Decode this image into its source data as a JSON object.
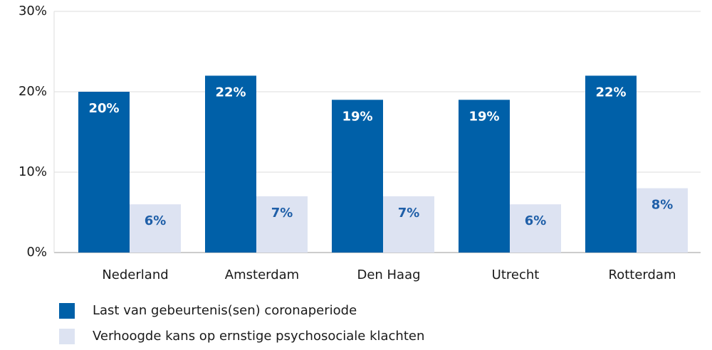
{
  "chart_data": {
    "type": "bar",
    "categories": [
      "Nederland",
      "Amsterdam",
      "Den Haag",
      "Utrecht",
      "Rotterdam"
    ],
    "series": [
      {
        "name": "Last van gebeurtenis(sen) coronaperiode",
        "color": "#0060a8",
        "values": [
          20,
          22,
          19,
          19,
          22
        ],
        "value_labels": [
          "20%",
          "22%",
          "19%",
          "19%",
          "22%"
        ]
      },
      {
        "name": "Verhoogde kans op ernstige psychosociale klachten",
        "color": "#dde3f2",
        "values": [
          6,
          7,
          7,
          6,
          8
        ],
        "value_labels": [
          "6%",
          "7%",
          "7%",
          "6%",
          "8%"
        ]
      }
    ],
    "ylim": [
      0,
      30
    ],
    "yticks": [
      {
        "value": 0,
        "label": "0%"
      },
      {
        "value": 10,
        "label": "10%"
      },
      {
        "value": 20,
        "label": "20%"
      },
      {
        "value": 30,
        "label": "30%"
      }
    ],
    "grid": true,
    "legend": "bottom"
  }
}
